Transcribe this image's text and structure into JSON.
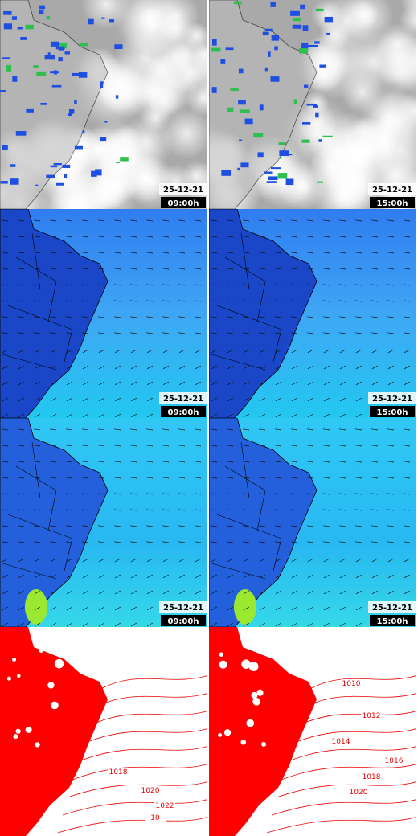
{
  "panels": [
    {
      "date": "25-12-21",
      "time": "09:00h"
    },
    {
      "date": "25-12-21",
      "time": "15:00h"
    },
    {
      "date": "25-12-21",
      "time": "09:00h"
    },
    {
      "date": "25-12-21",
      "time": "15:00h"
    },
    {
      "date": "25-12-21",
      "time": "09:00h"
    },
    {
      "date": "25-12-21",
      "time": "15:00h"
    }
  ],
  "pressure_maps": [
    {
      "labels": [
        "1018",
        "1020",
        "1022",
        "10"
      ]
    },
    {
      "labels": [
        "1010",
        "1012",
        "1014",
        "1016",
        "1018",
        "1020"
      ]
    }
  ]
}
